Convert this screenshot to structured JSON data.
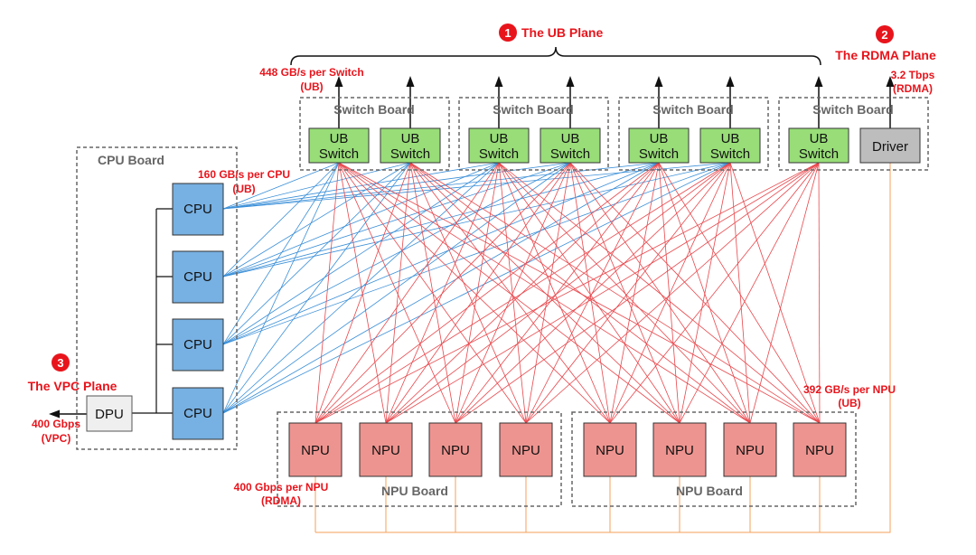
{
  "planes": {
    "ub": {
      "num": "1",
      "label": "The UB Plane"
    },
    "rdma": {
      "num": "2",
      "label": "The RDMA Plane"
    },
    "vpc": {
      "num": "3",
      "label": "The VPC Plane"
    }
  },
  "annotations": {
    "switch_bw": "448 GB/s per Switch",
    "switch_bw_unit": "(UB)",
    "cpu_bw": "160 GB/s per CPU",
    "cpu_bw_unit": "(UB)",
    "driver_bw": "3.2 Tbps",
    "driver_bw_unit": "(RDMA)",
    "npu_ub_bw": "392 GB/s per NPU",
    "npu_ub_bw_unit": "(UB)",
    "npu_rdma_bw": "400 Gbps per NPU",
    "npu_rdma_bw_unit": "(RDMA)",
    "dpu_bw": "400 Gbps",
    "dpu_bw_unit": "(VPC)"
  },
  "boards": {
    "switch_board": "Switch Board",
    "cpu_board": "CPU Board",
    "npu_board": "NPU Board"
  },
  "nodes": {
    "ub_switch_line1": "UB",
    "ub_switch_line2": "Switch",
    "driver": "Driver",
    "cpu": "CPU",
    "dpu": "DPU",
    "npu": "NPU"
  },
  "colors": {
    "ub_link": "#e8474c",
    "cpu_link": "#3a8fd8",
    "rdma_link": "#f5a05a",
    "switch_fill": "#98dd78",
    "cpu_fill": "#77b0e2",
    "npu_fill": "#ee9490",
    "driver_fill": "#bdbdbd",
    "dpu_fill": "#efefef",
    "accent": "#e8141c"
  }
}
